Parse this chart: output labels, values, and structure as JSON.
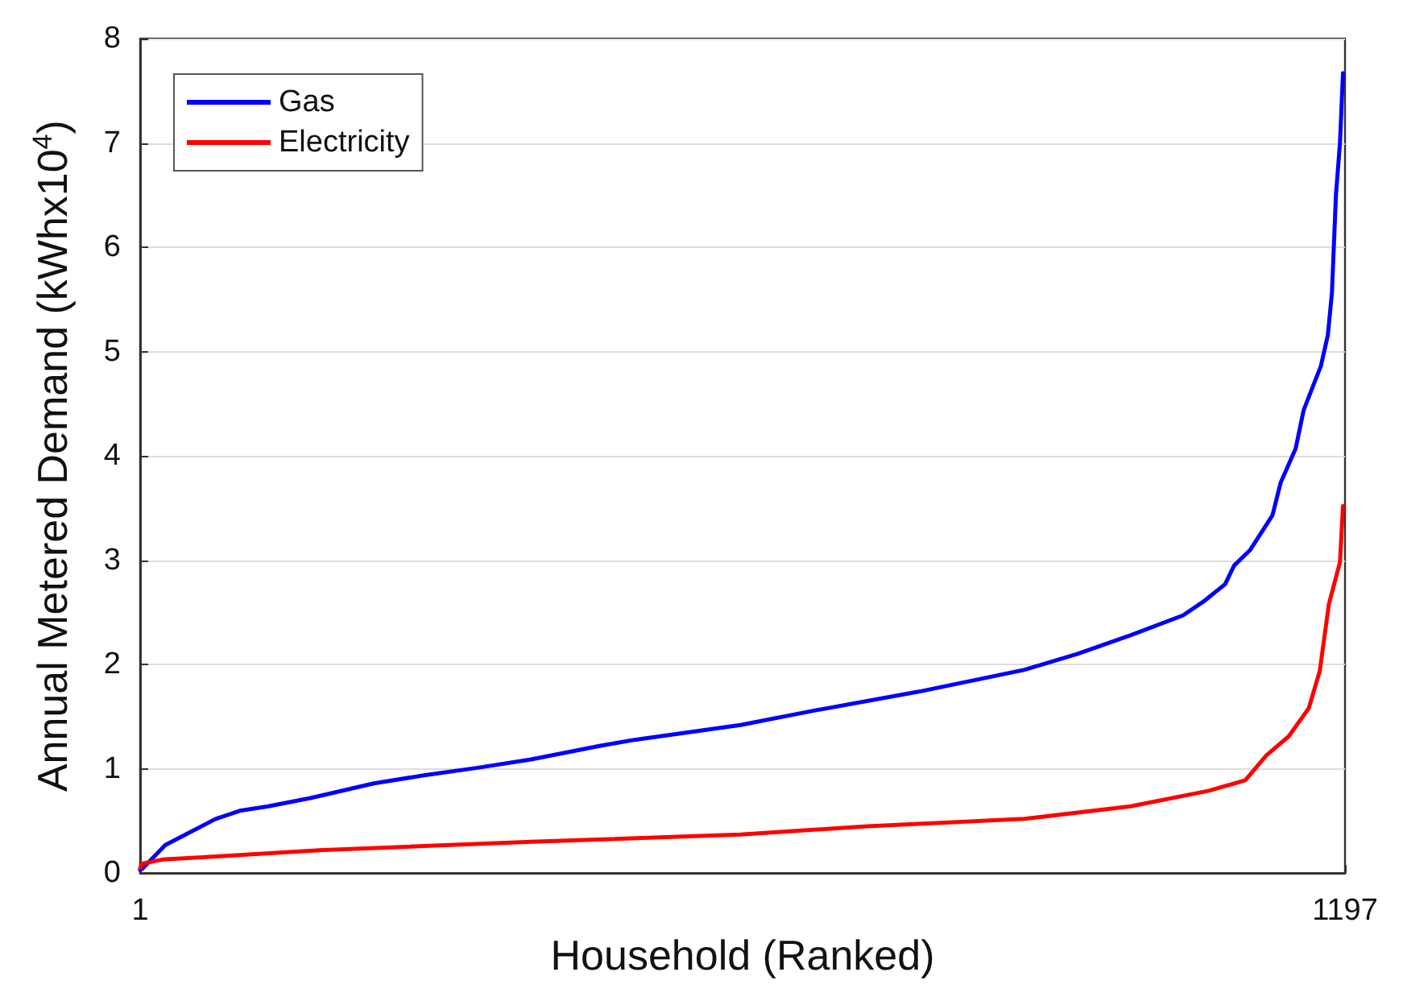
{
  "chart_data": {
    "type": "line",
    "xlabel": "Household (Ranked)",
    "ylabel": "Annual Metered Demand (kWhx10$^{4}$)",
    "xlim": [
      1,
      1197
    ],
    "xticks": [
      1,
      1197
    ],
    "ylim": [
      0,
      8
    ],
    "yticks": [
      0,
      1,
      2,
      3,
      4,
      5,
      6,
      7,
      8
    ],
    "grid": "y",
    "legend": "top left",
    "line_style": "solid",
    "marker": "none",
    "series": [
      {
        "name": "Gas",
        "color": "#0000ff",
        "x": [
          1,
          3,
          26,
          50,
          76,
          101,
          128,
          170,
          233,
          284,
          336,
          389,
          457,
          493,
          597,
          671,
          774,
          879,
          931,
          984,
          1036,
          1056,
          1078,
          1087,
          1103,
          1125,
          1133,
          1148,
          1156,
          1173,
          1180,
          1184,
          1188,
          1192,
          1195
        ],
        "values": [
          0.03,
          0.04,
          0.27,
          0.39,
          0.52,
          0.6,
          0.64,
          0.72,
          0.86,
          0.94,
          1.01,
          1.09,
          1.22,
          1.28,
          1.42,
          1.56,
          1.74,
          1.95,
          2.1,
          2.28,
          2.47,
          2.6,
          2.77,
          2.95,
          3.1,
          3.43,
          3.74,
          4.07,
          4.44,
          4.86,
          5.16,
          5.56,
          6.5,
          7.0,
          7.67
        ]
      },
      {
        "name": "Electricity",
        "color": "#ff0000",
        "x": [
          1,
          3,
          23,
          76,
          179,
          389,
          597,
          723,
          879,
          984,
          1062,
          1098,
          1119,
          1141,
          1161,
          1172,
          1181,
          1192,
          1195
        ],
        "values": [
          0.05,
          0.09,
          0.13,
          0.16,
          0.22,
          0.3,
          0.37,
          0.45,
          0.52,
          0.64,
          0.79,
          0.89,
          1.13,
          1.31,
          1.58,
          1.94,
          2.58,
          2.98,
          3.52
        ]
      }
    ]
  }
}
